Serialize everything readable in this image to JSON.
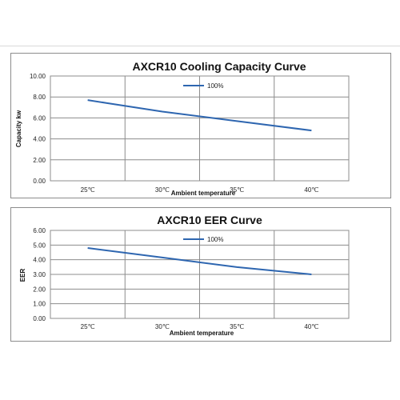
{
  "chart_data": [
    {
      "type": "line",
      "title": "AXCR10 Cooling Capacity Curve",
      "xlabel": "Ambient temperature",
      "ylabel": "Capacity kw",
      "categories": [
        "25℃",
        "30℃",
        "35℃",
        "40℃"
      ],
      "yticks": [
        "0.00",
        "2.00",
        "4.00",
        "6.00",
        "8.00",
        "10.00"
      ],
      "ylim": [
        0,
        10
      ],
      "grid": true,
      "legend_position": "top",
      "series": [
        {
          "name": "100%",
          "values": [
            7.7,
            6.6,
            5.7,
            4.8
          ],
          "color": "#2e66b0"
        }
      ]
    },
    {
      "type": "line",
      "title": "AXCR10 EER Curve",
      "xlabel": "Ambient temperature",
      "ylabel": "EER",
      "categories": [
        "25℃",
        "30℃",
        "35℃",
        "40℃"
      ],
      "yticks": [
        "0.00",
        "1.00",
        "2.00",
        "3.00",
        "4.00",
        "5.00",
        "6.00"
      ],
      "ylim": [
        0,
        6
      ],
      "grid": true,
      "legend_position": "top",
      "series": [
        {
          "name": "100%",
          "values": [
            4.8,
            4.15,
            3.5,
            3.0
          ],
          "color": "#2e66b0"
        }
      ]
    }
  ]
}
